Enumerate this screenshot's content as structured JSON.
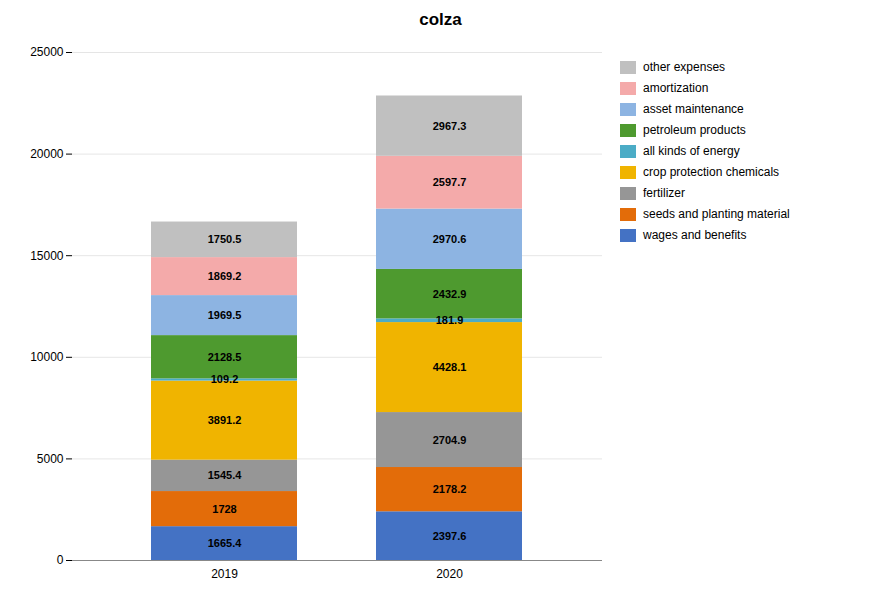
{
  "chart_data": {
    "type": "bar",
    "title": "colza",
    "categories": [
      "2019",
      "2020"
    ],
    "series": [
      {
        "name": "wages and benefits",
        "values": [
          1665.4,
          2397.6
        ],
        "color": "#4472C4"
      },
      {
        "name": "seeds and planting material",
        "values": [
          1728.0,
          2178.2
        ],
        "color": "#E36C09"
      },
      {
        "name": "fertilizer",
        "values": [
          1545.4,
          2704.9
        ],
        "color": "#969696"
      },
      {
        "name": "crop protection chemicals",
        "values": [
          3891.2,
          4428.1
        ],
        "color": "#F0B400"
      },
      {
        "name": "all kinds of energy",
        "values": [
          109.2,
          181.9
        ],
        "color": "#4BACC6"
      },
      {
        "name": "petroleum products",
        "values": [
          2128.5,
          2432.9
        ],
        "color": "#4E9A2F"
      },
      {
        "name": "asset maintenance",
        "values": [
          1969.5,
          2970.6
        ],
        "color": "#8DB4E2"
      },
      {
        "name": "amortization",
        "values": [
          1869.2,
          2597.7
        ],
        "color": "#F4AAAA"
      },
      {
        "name": "other expenses",
        "values": [
          1750.5,
          2967.3
        ],
        "color": "#C0C0C0"
      }
    ],
    "ylim": [
      0,
      25000
    ],
    "yticks": [
      0,
      5000,
      10000,
      15000,
      20000,
      25000
    ],
    "stacked": true,
    "data_labels": true,
    "grid": true,
    "legend": "upper right"
  }
}
